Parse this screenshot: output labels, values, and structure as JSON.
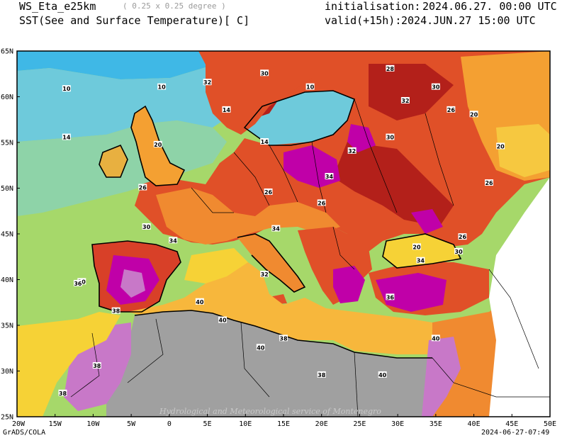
{
  "header": {
    "model": "WS_Eta_e25km",
    "resolution": "( 0.25 x 0.25 degree )",
    "variable": "SST(See and Surface Temperature)[ C]",
    "init_label": "initialisation:",
    "init_value": "2024.06.27. 00:00 UTC",
    "valid_label": "valid(+15h):",
    "valid_value": "2024.JUN.27 15:00 UTC"
  },
  "footer": {
    "software": "GrADS/COLA",
    "timestamp": "2024-06-27-07:49",
    "watermark": "Hydrological and Meteorological service of Montenegro"
  },
  "map": {
    "lon_ticks": [
      "20W",
      "15W",
      "10W",
      "5W",
      "0",
      "5E",
      "10E",
      "15E",
      "20E",
      "25E",
      "30E",
      "35E",
      "40E",
      "45E",
      "50E"
    ],
    "lat_ticks": [
      "25N",
      "30N",
      "35N",
      "40N",
      "45N",
      "50N",
      "55N",
      "60N",
      "65N"
    ],
    "contour_labels": [
      {
        "text": "10",
        "lon": -13.5,
        "lat": 60.8
      },
      {
        "text": "10",
        "lon": -1,
        "lat": 61
      },
      {
        "text": "10",
        "lon": 18.5,
        "lat": 61
      },
      {
        "text": "14",
        "lon": -13.5,
        "lat": 55.5
      },
      {
        "text": "14",
        "lon": 7.5,
        "lat": 58.5
      },
      {
        "text": "14",
        "lon": 12.5,
        "lat": 55
      },
      {
        "text": "20",
        "lon": -11.5,
        "lat": 39.7
      },
      {
        "text": "20",
        "lon": -1.5,
        "lat": 54.7
      },
      {
        "text": "20",
        "lon": 40,
        "lat": 58
      },
      {
        "text": "20",
        "lon": 43.5,
        "lat": 54.5
      },
      {
        "text": "20",
        "lon": 32.5,
        "lat": 43.5
      },
      {
        "text": "26",
        "lon": -3.5,
        "lat": 50
      },
      {
        "text": "26",
        "lon": 13,
        "lat": 49.5
      },
      {
        "text": "26",
        "lon": 20,
        "lat": 48.3
      },
      {
        "text": "26",
        "lon": 37,
        "lat": 58.5
      },
      {
        "text": "26",
        "lon": 42,
        "lat": 50.5
      },
      {
        "text": "26",
        "lon": 38.5,
        "lat": 44.6
      },
      {
        "text": "28",
        "lon": 29,
        "lat": 63
      },
      {
        "text": "30",
        "lon": -3,
        "lat": 45.7
      },
      {
        "text": "30",
        "lon": 12.5,
        "lat": 62.5
      },
      {
        "text": "30",
        "lon": 29,
        "lat": 55.5
      },
      {
        "text": "30",
        "lon": 35,
        "lat": 61
      },
      {
        "text": "30",
        "lon": 38,
        "lat": 43
      },
      {
        "text": "32",
        "lon": 5,
        "lat": 61.5
      },
      {
        "text": "32",
        "lon": 24,
        "lat": 54
      },
      {
        "text": "32",
        "lon": 31,
        "lat": 59.5
      },
      {
        "text": "32",
        "lon": 12.5,
        "lat": 40.5
      },
      {
        "text": "34",
        "lon": 21,
        "lat": 51.2
      },
      {
        "text": "34",
        "lon": 14,
        "lat": 45.5
      },
      {
        "text": "34",
        "lon": 0.5,
        "lat": 44.2
      },
      {
        "text": "34",
        "lon": 33,
        "lat": 42
      },
      {
        "text": "36",
        "lon": -12,
        "lat": 39.5
      },
      {
        "text": "36",
        "lon": 29,
        "lat": 38
      },
      {
        "text": "38",
        "lon": -7,
        "lat": 36.5
      },
      {
        "text": "38",
        "lon": 15,
        "lat": 33.5
      },
      {
        "text": "38",
        "lon": -9.5,
        "lat": 30.5
      },
      {
        "text": "38",
        "lon": -14,
        "lat": 27.5
      },
      {
        "text": "38",
        "lon": 20,
        "lat": 29.5
      },
      {
        "text": "40",
        "lon": 4,
        "lat": 37.5
      },
      {
        "text": "40",
        "lon": 7,
        "lat": 35.5
      },
      {
        "text": "40",
        "lon": 12,
        "lat": 32.5
      },
      {
        "text": "40",
        "lon": 28,
        "lat": 29.5
      },
      {
        "text": "40",
        "lon": 35,
        "lat": 33.5
      }
    ]
  }
}
